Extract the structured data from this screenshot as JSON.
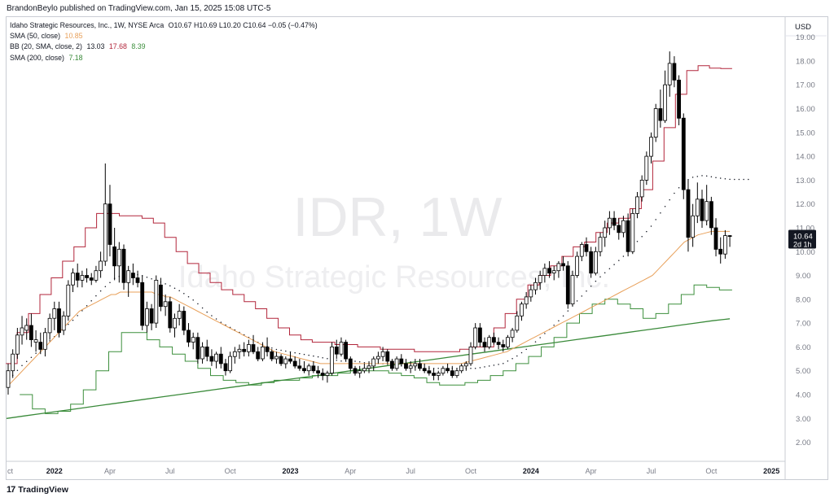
{
  "header": {
    "published": "BrandonBeylo published on TradingView.com, Jan 15, 2025 15:08 UTC-5"
  },
  "legend": {
    "title": "Idaho Strategic Resources, Inc., 1W, NYSE Arca",
    "o_label": "O",
    "o": "10.67",
    "h_label": "H",
    "h": "10.69",
    "l_label": "L",
    "l": "10.20",
    "c_label": "C",
    "c": "10.64",
    "change": "−0.05 (−0.47%)",
    "sma50": {
      "label": "SMA (50, close)",
      "value": "10.85"
    },
    "bb": {
      "label": "BB (20, SMA, close, 2)",
      "basis": "13.03",
      "upper": "17.68",
      "lower": "8.39"
    },
    "sma200": {
      "label": "SMA (200, close)",
      "value": "7.18"
    }
  },
  "footer": {
    "logo": "17",
    "brand": "TradingView"
  },
  "colors": {
    "up": "#ffffff",
    "down": "#000000",
    "wick": "#000000",
    "bb_upper": "#b2263b",
    "bb_lower": "#3c8f3c",
    "sma50": "#e8a05a",
    "sma200": "#3a8a3a",
    "basis_dots": "#131722",
    "axis_text": "#787b86",
    "watermark": "#eaeaec",
    "last_badge": "#131722",
    "last_text": "#ffffff"
  },
  "chart_data": {
    "type": "candlestick",
    "currency": "USD",
    "watermark_symbol": "IDR, 1W",
    "watermark_name": "Idaho Strategic Resources, Inc.",
    "ylim": [
      1.2,
      19.5
    ],
    "y_ticks": [
      "2.00",
      "3.00",
      "4.00",
      "5.00",
      "6.00",
      "7.00",
      "8.00",
      "9.00",
      "10.00",
      "11.00",
      "12.00",
      "13.00",
      "14.00",
      "15.00",
      "16.00",
      "17.00",
      "18.00",
      "19.00"
    ],
    "time_labels": [
      {
        "label": "ct",
        "week": 0,
        "bold": false
      },
      {
        "label": "2022",
        "week": 10,
        "bold": true
      },
      {
        "label": "Apr",
        "week": 22,
        "bold": false
      },
      {
        "label": "Jul",
        "week": 35,
        "bold": false
      },
      {
        "label": "Oct",
        "week": 48,
        "bold": false
      },
      {
        "label": "2023",
        "week": 61,
        "bold": true
      },
      {
        "label": "Apr",
        "week": 74,
        "bold": false
      },
      {
        "label": "Jul",
        "week": 87,
        "bold": false
      },
      {
        "label": "Oct",
        "week": 100,
        "bold": false
      },
      {
        "label": "2024",
        "week": 113,
        "bold": true
      },
      {
        "label": "Apr",
        "week": 126,
        "bold": false
      },
      {
        "label": "Jul",
        "week": 139,
        "bold": false
      },
      {
        "label": "Oct",
        "week": 152,
        "bold": false
      },
      {
        "label": "2025",
        "week": 165,
        "bold": true
      }
    ],
    "last_price": "10.64",
    "countdown": "2d 1h",
    "ohlc": [
      [
        4.3,
        5.3,
        4.0,
        5.0
      ],
      [
        5.0,
        5.9,
        4.7,
        5.7
      ],
      [
        5.7,
        6.8,
        5.5,
        6.5
      ],
      [
        6.5,
        7.3,
        6.1,
        6.8
      ],
      [
        6.7,
        7.2,
        6.3,
        6.9
      ],
      [
        6.9,
        7.4,
        6.0,
        6.3
      ],
      [
        6.2,
        6.7,
        5.8,
        6.3
      ],
      [
        6.2,
        6.6,
        5.7,
        5.9
      ],
      [
        5.9,
        6.8,
        5.6,
        6.6
      ],
      [
        6.6,
        7.4,
        6.3,
        7.2
      ],
      [
        7.2,
        7.9,
        6.7,
        7.6
      ],
      [
        7.6,
        7.9,
        6.4,
        6.6
      ],
      [
        6.7,
        7.5,
        6.5,
        7.3
      ],
      [
        7.3,
        8.8,
        7.1,
        8.6
      ],
      [
        8.6,
        9.3,
        8.3,
        9.1
      ],
      [
        9.1,
        9.5,
        8.5,
        8.8
      ],
      [
        8.8,
        9.2,
        8.5,
        9.0
      ],
      [
        9.0,
        9.3,
        8.7,
        8.9
      ],
      [
        8.9,
        9.1,
        8.6,
        8.8
      ],
      [
        8.8,
        9.4,
        8.7,
        9.2
      ],
      [
        9.2,
        10.0,
        8.9,
        9.6
      ],
      [
        9.6,
        13.7,
        9.4,
        12.0
      ],
      [
        12.0,
        12.8,
        9.8,
        10.3
      ],
      [
        10.2,
        11.0,
        8.8,
        9.4
      ],
      [
        9.4,
        10.4,
        8.7,
        10.1
      ],
      [
        10.1,
        10.3,
        8.4,
        8.7
      ],
      [
        8.7,
        9.4,
        8.1,
        9.2
      ],
      [
        9.1,
        9.5,
        8.6,
        8.9
      ],
      [
        8.9,
        9.2,
        8.5,
        8.7
      ],
      [
        8.7,
        9.0,
        6.7,
        6.9
      ],
      [
        6.9,
        7.9,
        6.6,
        7.6
      ],
      [
        7.6,
        7.8,
        6.7,
        7.0
      ],
      [
        7.0,
        9.0,
        6.8,
        8.8
      ],
      [
        8.6,
        8.9,
        7.5,
        7.7
      ],
      [
        7.7,
        8.2,
        7.3,
        7.9
      ],
      [
        7.9,
        8.1,
        6.6,
        6.8
      ],
      [
        6.8,
        7.4,
        6.4,
        7.2
      ],
      [
        7.2,
        7.8,
        6.9,
        7.5
      ],
      [
        7.5,
        7.7,
        6.5,
        6.7
      ],
      [
        6.7,
        7.0,
        6.0,
        6.2
      ],
      [
        6.2,
        6.6,
        5.9,
        6.4
      ],
      [
        6.4,
        6.6,
        5.3,
        5.5
      ],
      [
        5.5,
        6.2,
        5.3,
        6.0
      ],
      [
        6.0,
        6.3,
        5.4,
        5.6
      ],
      [
        5.6,
        5.9,
        5.2,
        5.4
      ],
      [
        5.4,
        5.8,
        5.1,
        5.7
      ],
      [
        5.7,
        6.0,
        5.1,
        5.3
      ],
      [
        5.3,
        5.5,
        4.8,
        5.0
      ],
      [
        5.0,
        5.8,
        4.9,
        5.6
      ],
      [
        5.6,
        6.0,
        5.3,
        5.8
      ],
      [
        5.8,
        6.1,
        5.5,
        5.9
      ],
      [
        5.9,
        6.2,
        5.6,
        5.8
      ],
      [
        5.8,
        6.3,
        5.6,
        6.1
      ],
      [
        6.1,
        6.5,
        5.7,
        5.8
      ],
      [
        5.8,
        6.0,
        5.4,
        5.5
      ],
      [
        5.5,
        6.2,
        5.4,
        6.0
      ],
      [
        6.0,
        6.4,
        5.6,
        5.8
      ],
      [
        5.8,
        5.9,
        5.4,
        5.5
      ],
      [
        5.5,
        5.8,
        5.3,
        5.6
      ],
      [
        5.6,
        5.7,
        5.2,
        5.3
      ],
      [
        5.3,
        5.6,
        5.1,
        5.5
      ],
      [
        5.5,
        5.8,
        5.3,
        5.4
      ],
      [
        5.4,
        5.6,
        5.1,
        5.2
      ],
      [
        5.2,
        5.5,
        5.0,
        5.1
      ],
      [
        5.1,
        5.4,
        4.9,
        5.0
      ],
      [
        5.0,
        5.3,
        4.8,
        5.2
      ],
      [
        5.2,
        5.4,
        4.9,
        5.0
      ],
      [
        5.0,
        5.2,
        4.7,
        4.9
      ],
      [
        4.9,
        5.1,
        4.6,
        4.8
      ],
      [
        4.8,
        5.0,
        4.5,
        4.9
      ],
      [
        4.9,
        6.2,
        4.8,
        6.0
      ],
      [
        6.0,
        6.3,
        5.5,
        5.7
      ],
      [
        5.7,
        6.4,
        5.6,
        6.2
      ],
      [
        6.2,
        6.3,
        5.4,
        5.5
      ],
      [
        5.5,
        5.6,
        5.0,
        5.1
      ],
      [
        5.1,
        5.2,
        4.8,
        4.9
      ],
      [
        4.9,
        5.2,
        4.7,
        5.0
      ],
      [
        5.0,
        5.3,
        4.9,
        5.1
      ],
      [
        5.1,
        5.4,
        4.9,
        5.2
      ],
      [
        5.2,
        5.6,
        5.0,
        5.5
      ],
      [
        5.5,
        5.8,
        5.3,
        5.6
      ],
      [
        5.6,
        6.0,
        5.4,
        5.8
      ],
      [
        5.8,
        5.9,
        5.3,
        5.4
      ],
      [
        5.4,
        5.5,
        5.0,
        5.1
      ],
      [
        5.1,
        5.6,
        5.0,
        5.5
      ],
      [
        5.5,
        5.7,
        5.2,
        5.3
      ],
      [
        5.3,
        5.5,
        5.0,
        5.1
      ],
      [
        5.1,
        5.4,
        4.9,
        5.2
      ],
      [
        5.2,
        5.5,
        5.0,
        5.3
      ],
      [
        5.3,
        5.5,
        5.0,
        5.1
      ],
      [
        5.1,
        5.3,
        4.9,
        5.0
      ],
      [
        5.0,
        5.2,
        4.8,
        4.9
      ],
      [
        4.9,
        5.1,
        4.6,
        4.8
      ],
      [
        4.8,
        5.0,
        4.6,
        4.9
      ],
      [
        4.9,
        5.2,
        4.8,
        5.1
      ],
      [
        5.1,
        5.3,
        4.9,
        5.0
      ],
      [
        5.0,
        5.2,
        4.7,
        4.8
      ],
      [
        4.8,
        5.1,
        4.7,
        5.0
      ],
      [
        5.0,
        5.3,
        4.9,
        5.2
      ],
      [
        5.2,
        5.4,
        5.0,
        5.3
      ],
      [
        5.3,
        6.2,
        5.2,
        6.0
      ],
      [
        6.0,
        7.0,
        5.9,
        6.8
      ],
      [
        6.8,
        7.0,
        6.0,
        6.2
      ],
      [
        6.2,
        6.4,
        5.8,
        6.0
      ],
      [
        6.0,
        6.5,
        5.9,
        6.4
      ],
      [
        6.4,
        6.6,
        6.1,
        6.2
      ],
      [
        6.2,
        6.4,
        5.9,
        6.1
      ],
      [
        6.1,
        6.3,
        5.8,
        6.0
      ],
      [
        6.0,
        6.5,
        5.9,
        6.4
      ],
      [
        6.4,
        6.8,
        6.2,
        6.7
      ],
      [
        6.7,
        7.5,
        6.6,
        7.3
      ],
      [
        7.3,
        7.9,
        7.1,
        7.8
      ],
      [
        7.8,
        8.3,
        7.6,
        8.1
      ],
      [
        8.1,
        8.6,
        7.9,
        8.4
      ],
      [
        8.4,
        8.9,
        8.2,
        8.7
      ],
      [
        8.7,
        9.2,
        8.4,
        9.0
      ],
      [
        9.0,
        9.5,
        8.7,
        9.3
      ],
      [
        9.3,
        9.6,
        8.9,
        9.1
      ],
      [
        9.1,
        9.4,
        8.8,
        9.2
      ],
      [
        9.2,
        9.6,
        8.9,
        9.5
      ],
      [
        9.5,
        9.8,
        9.2,
        9.4
      ],
      [
        9.4,
        9.6,
        7.6,
        7.8
      ],
      [
        7.8,
        9.2,
        7.7,
        9.0
      ],
      [
        9.0,
        10.0,
        8.9,
        9.8
      ],
      [
        9.8,
        10.4,
        9.6,
        10.3
      ],
      [
        10.3,
        10.6,
        9.8,
        10.0
      ],
      [
        10.0,
        10.2,
        8.9,
        9.1
      ],
      [
        9.1,
        10.2,
        9.0,
        10.0
      ],
      [
        10.0,
        10.8,
        9.8,
        10.6
      ],
      [
        10.6,
        11.3,
        10.2,
        11.0
      ],
      [
        11.0,
        11.7,
        10.7,
        11.4
      ],
      [
        11.4,
        11.7,
        10.9,
        11.1
      ],
      [
        11.1,
        11.4,
        10.5,
        10.8
      ],
      [
        10.8,
        11.5,
        10.6,
        11.3
      ],
      [
        11.3,
        11.6,
        9.8,
        10.0
      ],
      [
        10.0,
        11.8,
        9.9,
        11.6
      ],
      [
        11.6,
        12.5,
        11.4,
        12.3
      ],
      [
        12.3,
        13.2,
        12.1,
        13.0
      ],
      [
        13.0,
        14.2,
        12.8,
        14.0
      ],
      [
        14.0,
        15.0,
        13.7,
        14.8
      ],
      [
        14.8,
        16.2,
        14.6,
        16.0
      ],
      [
        16.0,
        16.8,
        15.2,
        15.5
      ],
      [
        15.5,
        17.6,
        15.4,
        17.0
      ],
      [
        17.0,
        18.4,
        16.5,
        17.9
      ],
      [
        17.9,
        18.2,
        16.9,
        17.2
      ],
      [
        17.2,
        17.4,
        15.3,
        15.6
      ],
      [
        15.6,
        15.8,
        12.2,
        12.6
      ],
      [
        12.6,
        13.0,
        10.0,
        10.6
      ],
      [
        10.6,
        12.0,
        10.2,
        11.5
      ],
      [
        11.5,
        12.9,
        11.2,
        12.2
      ],
      [
        12.2,
        12.6,
        11.0,
        11.3
      ],
      [
        11.3,
        12.8,
        11.1,
        12.1
      ],
      [
        12.1,
        12.3,
        10.7,
        11.0
      ],
      [
        11.0,
        11.4,
        9.8,
        10.1
      ],
      [
        10.1,
        10.6,
        9.5,
        9.9
      ],
      [
        9.9,
        10.9,
        9.7,
        10.67
      ],
      [
        10.67,
        10.69,
        10.2,
        10.64
      ]
    ],
    "sma50": [
      4.3,
      4.5,
      4.7,
      4.9,
      5.1,
      5.3,
      5.5,
      5.7,
      5.9,
      6.1,
      6.3,
      6.5,
      6.7,
      6.9,
      7.1,
      7.3,
      7.5,
      7.6,
      7.7,
      7.8,
      7.9,
      8.0,
      8.1,
      8.2,
      8.2,
      8.3,
      8.3,
      8.3,
      8.3,
      8.3,
      8.3,
      8.3,
      8.3,
      8.2,
      8.2,
      8.1,
      8.1,
      8.0,
      7.9,
      7.8,
      7.7,
      7.6,
      7.5,
      7.4,
      7.3,
      7.2,
      7.1,
      7.0,
      6.9,
      6.8,
      6.7,
      6.6,
      6.5,
      6.4,
      6.3,
      6.2,
      6.1,
      6.0,
      5.9,
      5.8,
      5.75,
      5.7,
      5.65,
      5.6,
      5.55,
      5.5,
      5.45,
      5.4,
      5.35,
      5.3,
      5.3,
      5.3,
      5.3,
      5.3,
      5.3,
      5.3,
      5.3,
      5.3,
      5.3,
      5.3,
      5.3,
      5.3,
      5.3,
      5.3,
      5.3,
      5.3,
      5.3,
      5.3,
      5.3,
      5.3,
      5.3,
      5.3,
      5.3,
      5.3,
      5.3,
      5.3,
      5.3,
      5.3,
      5.3,
      5.3,
      5.3,
      5.35,
      5.4,
      5.45,
      5.5,
      5.55,
      5.6,
      5.65,
      5.7,
      5.75,
      5.8,
      5.9,
      6.0,
      6.1,
      6.2,
      6.3,
      6.4,
      6.5,
      6.6,
      6.7,
      6.8,
      6.9,
      7.0,
      7.1,
      7.2,
      7.3,
      7.4,
      7.5,
      7.6,
      7.7,
      7.8,
      7.9,
      8.0,
      8.1,
      8.2,
      8.3,
      8.4,
      8.5,
      8.6,
      8.7,
      8.8,
      8.9,
      9.0,
      9.2,
      9.4,
      9.6,
      9.8,
      10.0,
      10.2,
      10.4,
      10.5,
      10.6,
      10.7,
      10.75,
      10.8,
      10.85,
      10.85,
      10.85,
      10.85,
      10.85
    ],
    "sma200": [
      3.0,
      3.1,
      3.2,
      3.3,
      3.4,
      3.5,
      3.6,
      3.7,
      3.8,
      3.9,
      4.0,
      4.1,
      4.2,
      4.3,
      4.4,
      4.5,
      4.6,
      4.7,
      4.8,
      4.9,
      5.0,
      5.1,
      5.2,
      5.3,
      5.4,
      5.5,
      5.6,
      5.7,
      5.8,
      5.9,
      6.0,
      6.1,
      6.2,
      6.3,
      6.4,
      6.5,
      6.6,
      6.7,
      6.8,
      6.9,
      7.0,
      7.1,
      7.18
    ],
    "bb_upper": [
      5.3,
      6.6,
      7.4,
      8.2,
      8.9,
      9.6,
      10.2,
      11.0,
      11.6,
      11.6,
      11.5,
      11.5,
      11.4,
      11.2,
      10.6,
      10.0,
      9.5,
      9.1,
      8.7,
      8.4,
      8.2,
      7.9,
      7.6,
      7.2,
      6.8,
      6.5,
      6.3,
      6.2,
      6.2,
      6.1,
      6.1,
      6.0,
      6.0,
      5.9,
      5.9,
      5.9,
      5.8,
      5.8,
      5.8,
      5.8,
      5.9,
      6.0,
      6.0,
      6.8,
      7.4,
      8.0,
      8.6,
      9.0,
      9.4,
      9.8,
      10.2,
      10.4,
      10.8,
      11.2,
      11.4,
      11.8,
      12.6,
      13.8,
      15.2,
      16.6,
      17.6,
      17.8,
      17.7,
      17.68
    ],
    "bb_lower": [
      4.0,
      3.4,
      3.2,
      3.3,
      3.6,
      4.2,
      5.0,
      5.8,
      6.6,
      6.6,
      6.3,
      6.0,
      5.7,
      5.4,
      5.1,
      4.8,
      4.6,
      4.5,
      4.4,
      4.5,
      4.6,
      4.6,
      4.7,
      4.8,
      4.8,
      4.9,
      5.0,
      5.0,
      5.0,
      4.9,
      4.8,
      4.7,
      4.5,
      4.4,
      4.4,
      4.5,
      4.6,
      4.8,
      5.0,
      5.3,
      5.6,
      6.0,
      6.4,
      7.0,
      7.4,
      7.8,
      8.0,
      7.8,
      7.6,
      7.2,
      7.4,
      7.8,
      8.2,
      8.6,
      8.5,
      8.39
    ],
    "bb_basis": [
      4.6,
      5.2,
      5.7,
      6.2,
      6.7,
      7.2,
      7.8,
      8.4,
      8.9,
      9.1,
      9.0,
      8.8,
      8.6,
      8.3,
      7.9,
      7.4,
      7.0,
      6.7,
      6.4,
      6.1,
      5.9,
      5.8,
      5.7,
      5.6,
      5.5,
      5.4,
      5.4,
      5.3,
      5.3,
      5.2,
      5.2,
      5.1,
      5.1,
      5.1,
      5.1,
      5.1,
      5.2,
      5.3,
      5.6,
      6.0,
      6.5,
      7.0,
      7.6,
      8.2,
      8.8,
      9.3,
      9.8,
      10.4,
      11.0,
      11.8,
      12.6,
      13.1,
      13.2,
      13.1,
      13.03
    ]
  }
}
